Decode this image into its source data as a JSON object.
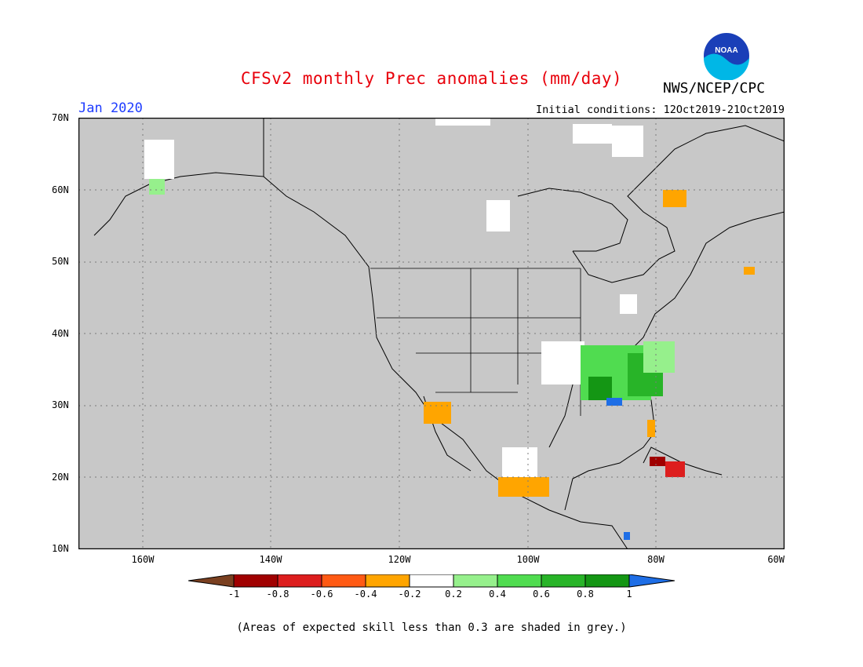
{
  "header": {
    "title": "CFSv2 monthly Prec anomalies (mm/day)",
    "agency": "NWS/NCEP/CPC",
    "logo_text": "NOAA",
    "month": "Jan 2020",
    "initial_conditions": "Initial conditions: 12Oct2019-21Oct2019"
  },
  "colors": {
    "title": "#e8000b",
    "month": "#1e3cff",
    "map_background": "#c8c8c8",
    "grid": "#7a7a7a"
  },
  "map": {
    "lat_labels": [
      "70N",
      "60N",
      "50N",
      "40N",
      "30N",
      "20N",
      "10N"
    ],
    "lon_labels": [
      "160W",
      "140W",
      "120W",
      "100W",
      "80W",
      "60W"
    ]
  },
  "legend": {
    "ticks": [
      "-1",
      "-0.8",
      "-0.6",
      "-0.4",
      "-0.2",
      "0.2",
      "0.4",
      "0.6",
      "0.8",
      "1"
    ],
    "colors": [
      "#7a4020",
      "#a00000",
      "#dd1e1e",
      "#ff5a14",
      "#ffa500",
      "#ffffff",
      "#96f08c",
      "#50dc50",
      "#28b428",
      "#149614",
      "#1e6ee6"
    ]
  },
  "footnote": "(Areas of expected skill less than 0.3 are shaded in grey.)"
}
